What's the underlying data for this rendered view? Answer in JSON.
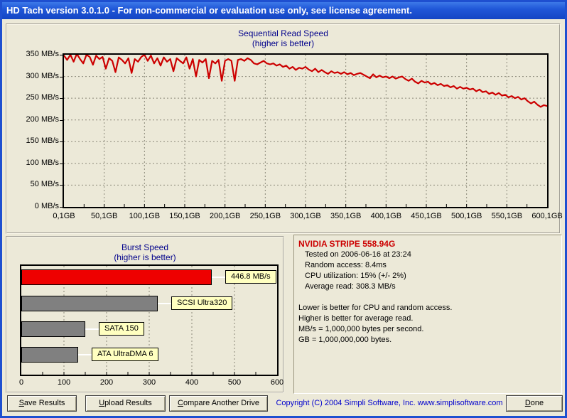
{
  "window": {
    "title": "HD Tach version 3.0.1.0  - For non-commercial or evaluation use only, see license agreement."
  },
  "sequential": {
    "title": "Sequential Read Speed",
    "subtitle": "(higher is better)",
    "y_tick_labels": [
      "350 MB/s",
      "300 MB/s",
      "250 MB/s",
      "200 MB/s",
      "150 MB/s",
      "100 MB/s",
      "50 MB/s",
      "0 MB/s"
    ],
    "x_tick_labels": [
      "0,1GB",
      "50,1GB",
      "100,1GB",
      "150,1GB",
      "200,1GB",
      "250,1GB",
      "300,1GB",
      "350,1GB",
      "400,1GB",
      "450,1GB",
      "500,1GB",
      "550,1GB",
      "600,1GB"
    ]
  },
  "burst": {
    "title": "Burst Speed",
    "subtitle": "(higher is better)",
    "x_tick_labels": [
      "0",
      "100",
      "200",
      "300",
      "400",
      "500",
      "600"
    ]
  },
  "info": {
    "drive": "NVIDIA STRIPE 558.94G",
    "stats": [
      "Tested on 2006-06-16 at 23:24",
      "Random access: 8.4ms",
      "CPU utilization: 15% (+/- 2%)",
      "Average read: 308.3 MB/s"
    ],
    "notes": [
      "Lower is better for CPU and random access.",
      "Higher is better for average read.",
      "MB/s = 1,000,000 bytes per second.",
      "GB = 1,000,000,000 bytes."
    ]
  },
  "footer": {
    "buttons": [
      {
        "accel": "S",
        "rest": "ave Results"
      },
      {
        "accel": "U",
        "rest": "pload Results"
      },
      {
        "accel": "C",
        "rest": "ompare Another Drive"
      }
    ],
    "copyright": "Copyright (C) 2004 Simpli Software, Inc. www.simplisoftware.com",
    "done_button": {
      "accel": "D",
      "rest": "one"
    }
  },
  "colors": {
    "line": "#CC0000",
    "highlight_bar": "#EE0000",
    "reference_bar": "#808080",
    "label_box": "#FFFFC0",
    "chart_title_text": "#00008B",
    "drive_text": "#CC0000",
    "copyright_text": "#0000CD",
    "grid": "#8a8878"
  },
  "chart_data": [
    {
      "type": "line",
      "title": "Sequential Read Speed",
      "subtitle": "(higher is better)",
      "xlim": [
        0,
        600
      ],
      "ylim": [
        0,
        350
      ],
      "x_tick_labels": [
        "0,1GB",
        "50,1GB",
        "100,1GB",
        "150,1GB",
        "200,1GB",
        "250,1GB",
        "300,1GB",
        "350,1GB",
        "400,1GB",
        "450,1GB",
        "500,1GB",
        "550,1GB",
        "600,1GB"
      ],
      "y_tick_labels": [
        "0 MB/s",
        "50 MB/s",
        "100 MB/s",
        "150 MB/s",
        "200 MB/s",
        "250 MB/s",
        "300 MB/s",
        "350 MB/s"
      ],
      "grid": true,
      "series": [
        {
          "name": "sequential read speed",
          "color": "#CC0000",
          "points": [
            [
              0,
              348
            ],
            [
              4,
              338
            ],
            [
              8,
              350
            ],
            [
              12,
              334
            ],
            [
              16,
              352
            ],
            [
              20,
              340
            ],
            [
              24,
              330
            ],
            [
              28,
              350
            ],
            [
              32,
              345
            ],
            [
              36,
              327
            ],
            [
              40,
              348
            ],
            [
              44,
              340
            ],
            [
              48,
              345
            ],
            [
              52,
              318
            ],
            [
              56,
              342
            ],
            [
              60,
              336
            ],
            [
              64,
              310
            ],
            [
              68,
              344
            ],
            [
              72,
              338
            ],
            [
              76,
              330
            ],
            [
              80,
              342
            ],
            [
              84,
              308
            ],
            [
              88,
              340
            ],
            [
              92,
              334
            ],
            [
              96,
              345
            ],
            [
              100,
              350
            ],
            [
              104,
              336
            ],
            [
              108,
              348
            ],
            [
              112,
              330
            ],
            [
              116,
              342
            ],
            [
              120,
              325
            ],
            [
              124,
              344
            ],
            [
              128,
              334
            ],
            [
              132,
              340
            ],
            [
              136,
              312
            ],
            [
              140,
              342
            ],
            [
              144,
              336
            ],
            [
              148,
              330
            ],
            [
              152,
              344
            ],
            [
              156,
              318
            ],
            [
              160,
              340
            ],
            [
              164,
              300
            ],
            [
              168,
              338
            ],
            [
              172,
              332
            ],
            [
              176,
              340
            ],
            [
              180,
              296
            ],
            [
              184,
              336
            ],
            [
              188,
              330
            ],
            [
              192,
              338
            ],
            [
              196,
              290
            ],
            [
              200,
              336
            ],
            [
              204,
              340
            ],
            [
              208,
              336
            ],
            [
              212,
              290
            ],
            [
              216,
              338
            ],
            [
              220,
              340
            ],
            [
              224,
              336
            ],
            [
              228,
              342
            ],
            [
              232,
              338
            ],
            [
              236,
              330
            ],
            [
              240,
              328
            ],
            [
              244,
              332
            ],
            [
              248,
              336
            ],
            [
              252,
              330
            ],
            [
              256,
              328
            ],
            [
              260,
              330
            ],
            [
              264,
              325
            ],
            [
              268,
              328
            ],
            [
              272,
              322
            ],
            [
              276,
              325
            ],
            [
              280,
              318
            ],
            [
              284,
              322
            ],
            [
              288,
              315
            ],
            [
              292,
              320
            ],
            [
              296,
              318
            ],
            [
              300,
              322
            ],
            [
              304,
              316
            ],
            [
              308,
              312
            ],
            [
              312,
              318
            ],
            [
              316,
              310
            ],
            [
              320,
              315
            ],
            [
              324,
              310
            ],
            [
              328,
              306
            ],
            [
              332,
              312
            ],
            [
              336,
              308
            ],
            [
              340,
              310
            ],
            [
              344,
              306
            ],
            [
              348,
              310
            ],
            [
              352,
              305
            ],
            [
              356,
              308
            ],
            [
              360,
              303
            ],
            [
              364,
              306
            ],
            [
              368,
              308
            ],
            [
              372,
              304
            ],
            [
              376,
              300
            ],
            [
              380,
              296
            ],
            [
              384,
              305
            ],
            [
              388,
              298
            ],
            [
              392,
              302
            ],
            [
              396,
              298
            ],
            [
              400,
              300
            ],
            [
              404,
              296
            ],
            [
              408,
              300
            ],
            [
              412,
              295
            ],
            [
              416,
              298
            ],
            [
              420,
              300
            ],
            [
              424,
              294
            ],
            [
              428,
              290
            ],
            [
              432,
              295
            ],
            [
              436,
              288
            ],
            [
              440,
              284
            ],
            [
              444,
              290
            ],
            [
              448,
              286
            ],
            [
              452,
              288
            ],
            [
              456,
              282
            ],
            [
              460,
              285
            ],
            [
              464,
              280
            ],
            [
              468,
              283
            ],
            [
              472,
              278
            ],
            [
              476,
              280
            ],
            [
              480,
              275
            ],
            [
              484,
              278
            ],
            [
              488,
              272
            ],
            [
              492,
              276
            ],
            [
              496,
              272
            ],
            [
              500,
              274
            ],
            [
              504,
              270
            ],
            [
              508,
              272
            ],
            [
              512,
              266
            ],
            [
              516,
              270
            ],
            [
              520,
              264
            ],
            [
              524,
              266
            ],
            [
              528,
              260
            ],
            [
              532,
              263
            ],
            [
              536,
              258
            ],
            [
              540,
              262
            ],
            [
              544,
              256
            ],
            [
              548,
              258
            ],
            [
              552,
              252
            ],
            [
              556,
              255
            ],
            [
              560,
              250
            ],
            [
              564,
              253
            ],
            [
              568,
              247
            ],
            [
              572,
              250
            ],
            [
              576,
              243
            ],
            [
              580,
              238
            ],
            [
              584,
              242
            ],
            [
              588,
              235
            ],
            [
              592,
              230
            ],
            [
              596,
              234
            ],
            [
              600,
              232
            ]
          ]
        }
      ]
    },
    {
      "type": "bar",
      "orientation": "horizontal",
      "title": "Burst Speed",
      "subtitle": "(higher is better)",
      "xlim": [
        0,
        600
      ],
      "x_tick_labels": [
        "0",
        "100",
        "200",
        "300",
        "400",
        "500",
        "600"
      ],
      "grid": true,
      "bars": [
        {
          "label": "446.8 MB/s",
          "value": 446.8,
          "color": "#EE0000"
        },
        {
          "label": "SCSI Ultra320",
          "value": 320,
          "color": "#808080"
        },
        {
          "label": "SATA 150",
          "value": 150,
          "color": "#808080"
        },
        {
          "label": "ATA UltraDMA 6",
          "value": 133,
          "color": "#808080"
        }
      ]
    }
  ]
}
